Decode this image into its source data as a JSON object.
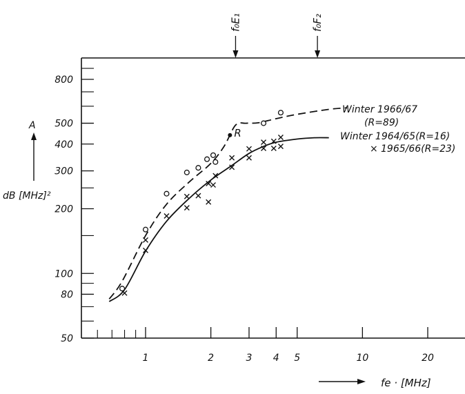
{
  "chart_data": {
    "type": "scatter",
    "x_scale": "log",
    "y_scale": "log",
    "xlim": [
      0.5,
      30
    ],
    "ylim": [
      50,
      1000
    ],
    "grid": false,
    "xlabel": "fe · [MHz]",
    "ylabel": "dB [MHz]²",
    "ylabel_top": "A",
    "x_ticks": [
      1,
      2,
      3,
      4,
      5,
      10,
      20
    ],
    "x_tick_labels": [
      "1",
      "2",
      "3",
      "4",
      "5",
      "10",
      "20"
    ],
    "y_ticks": [
      50,
      80,
      100,
      200,
      300,
      400,
      500,
      800
    ],
    "y_tick_labels": [
      "50",
      "80",
      "100",
      "200",
      "300",
      "400",
      "500",
      "800"
    ],
    "top_markers": [
      {
        "label": "f₀E₁",
        "x": 2.6
      },
      {
        "label": "f₀F₂",
        "x": 6.2
      }
    ],
    "series": [
      {
        "name": "Winter 1966/67 (R=89)",
        "legend_line1": "Winter 1966/67",
        "legend_line2": "(R=89)",
        "marker": "o",
        "line": "dashed",
        "points": [
          [
            0.78,
            85
          ],
          [
            1.0,
            160
          ],
          [
            1.25,
            235
          ],
          [
            1.55,
            295
          ],
          [
            1.75,
            310
          ],
          [
            1.92,
            340
          ],
          [
            2.05,
            355
          ],
          [
            2.1,
            330
          ],
          [
            3.5,
            500
          ],
          [
            4.2,
            560
          ]
        ],
        "curve": [
          [
            0.68,
            76
          ],
          [
            0.78,
            92
          ],
          [
            1.0,
            150
          ],
          [
            1.25,
            210
          ],
          [
            1.6,
            268
          ],
          [
            2.0,
            325
          ],
          [
            2.3,
            390
          ],
          [
            2.6,
            490
          ],
          [
            2.9,
            500
          ],
          [
            3.3,
            502
          ],
          [
            4.0,
            525
          ],
          [
            5.0,
            550
          ],
          [
            7.0,
            580
          ],
          [
            8.5,
            590
          ]
        ]
      },
      {
        "name": "Winter 1964/65 (R=16)",
        "legend_line1": "Winter 1964/65(R=16)",
        "marker": "none",
        "line": "solid",
        "curve": [
          [
            0.68,
            74
          ],
          [
            0.8,
            84
          ],
          [
            1.0,
            127
          ],
          [
            1.25,
            175
          ],
          [
            1.6,
            225
          ],
          [
            2.0,
            272
          ],
          [
            2.5,
            318
          ],
          [
            3.0,
            362
          ],
          [
            3.5,
            390
          ],
          [
            4.0,
            408
          ],
          [
            5.0,
            422
          ],
          [
            6.0,
            428
          ],
          [
            7.0,
            428
          ]
        ]
      },
      {
        "name": "1965/66 (R=23)",
        "legend_line1": "1965/66(R=23)",
        "marker": "x",
        "line": "none",
        "points": [
          [
            0.8,
            81
          ],
          [
            1.0,
            143
          ],
          [
            1.0,
            128
          ],
          [
            1.25,
            185
          ],
          [
            1.55,
            228
          ],
          [
            1.55,
            202
          ],
          [
            1.75,
            230
          ],
          [
            1.95,
            215
          ],
          [
            1.95,
            262
          ],
          [
            2.05,
            258
          ],
          [
            2.1,
            285
          ],
          [
            2.5,
            312
          ],
          [
            2.5,
            345
          ],
          [
            3.0,
            345
          ],
          [
            3.0,
            380
          ],
          [
            3.5,
            382
          ],
          [
            3.5,
            408
          ],
          [
            3.9,
            382
          ],
          [
            3.9,
            412
          ],
          [
            4.2,
            390
          ],
          [
            4.2,
            430
          ]
        ]
      }
    ],
    "annotations": [
      {
        "text": "R",
        "x": 2.45,
        "y": 440
      }
    ]
  }
}
